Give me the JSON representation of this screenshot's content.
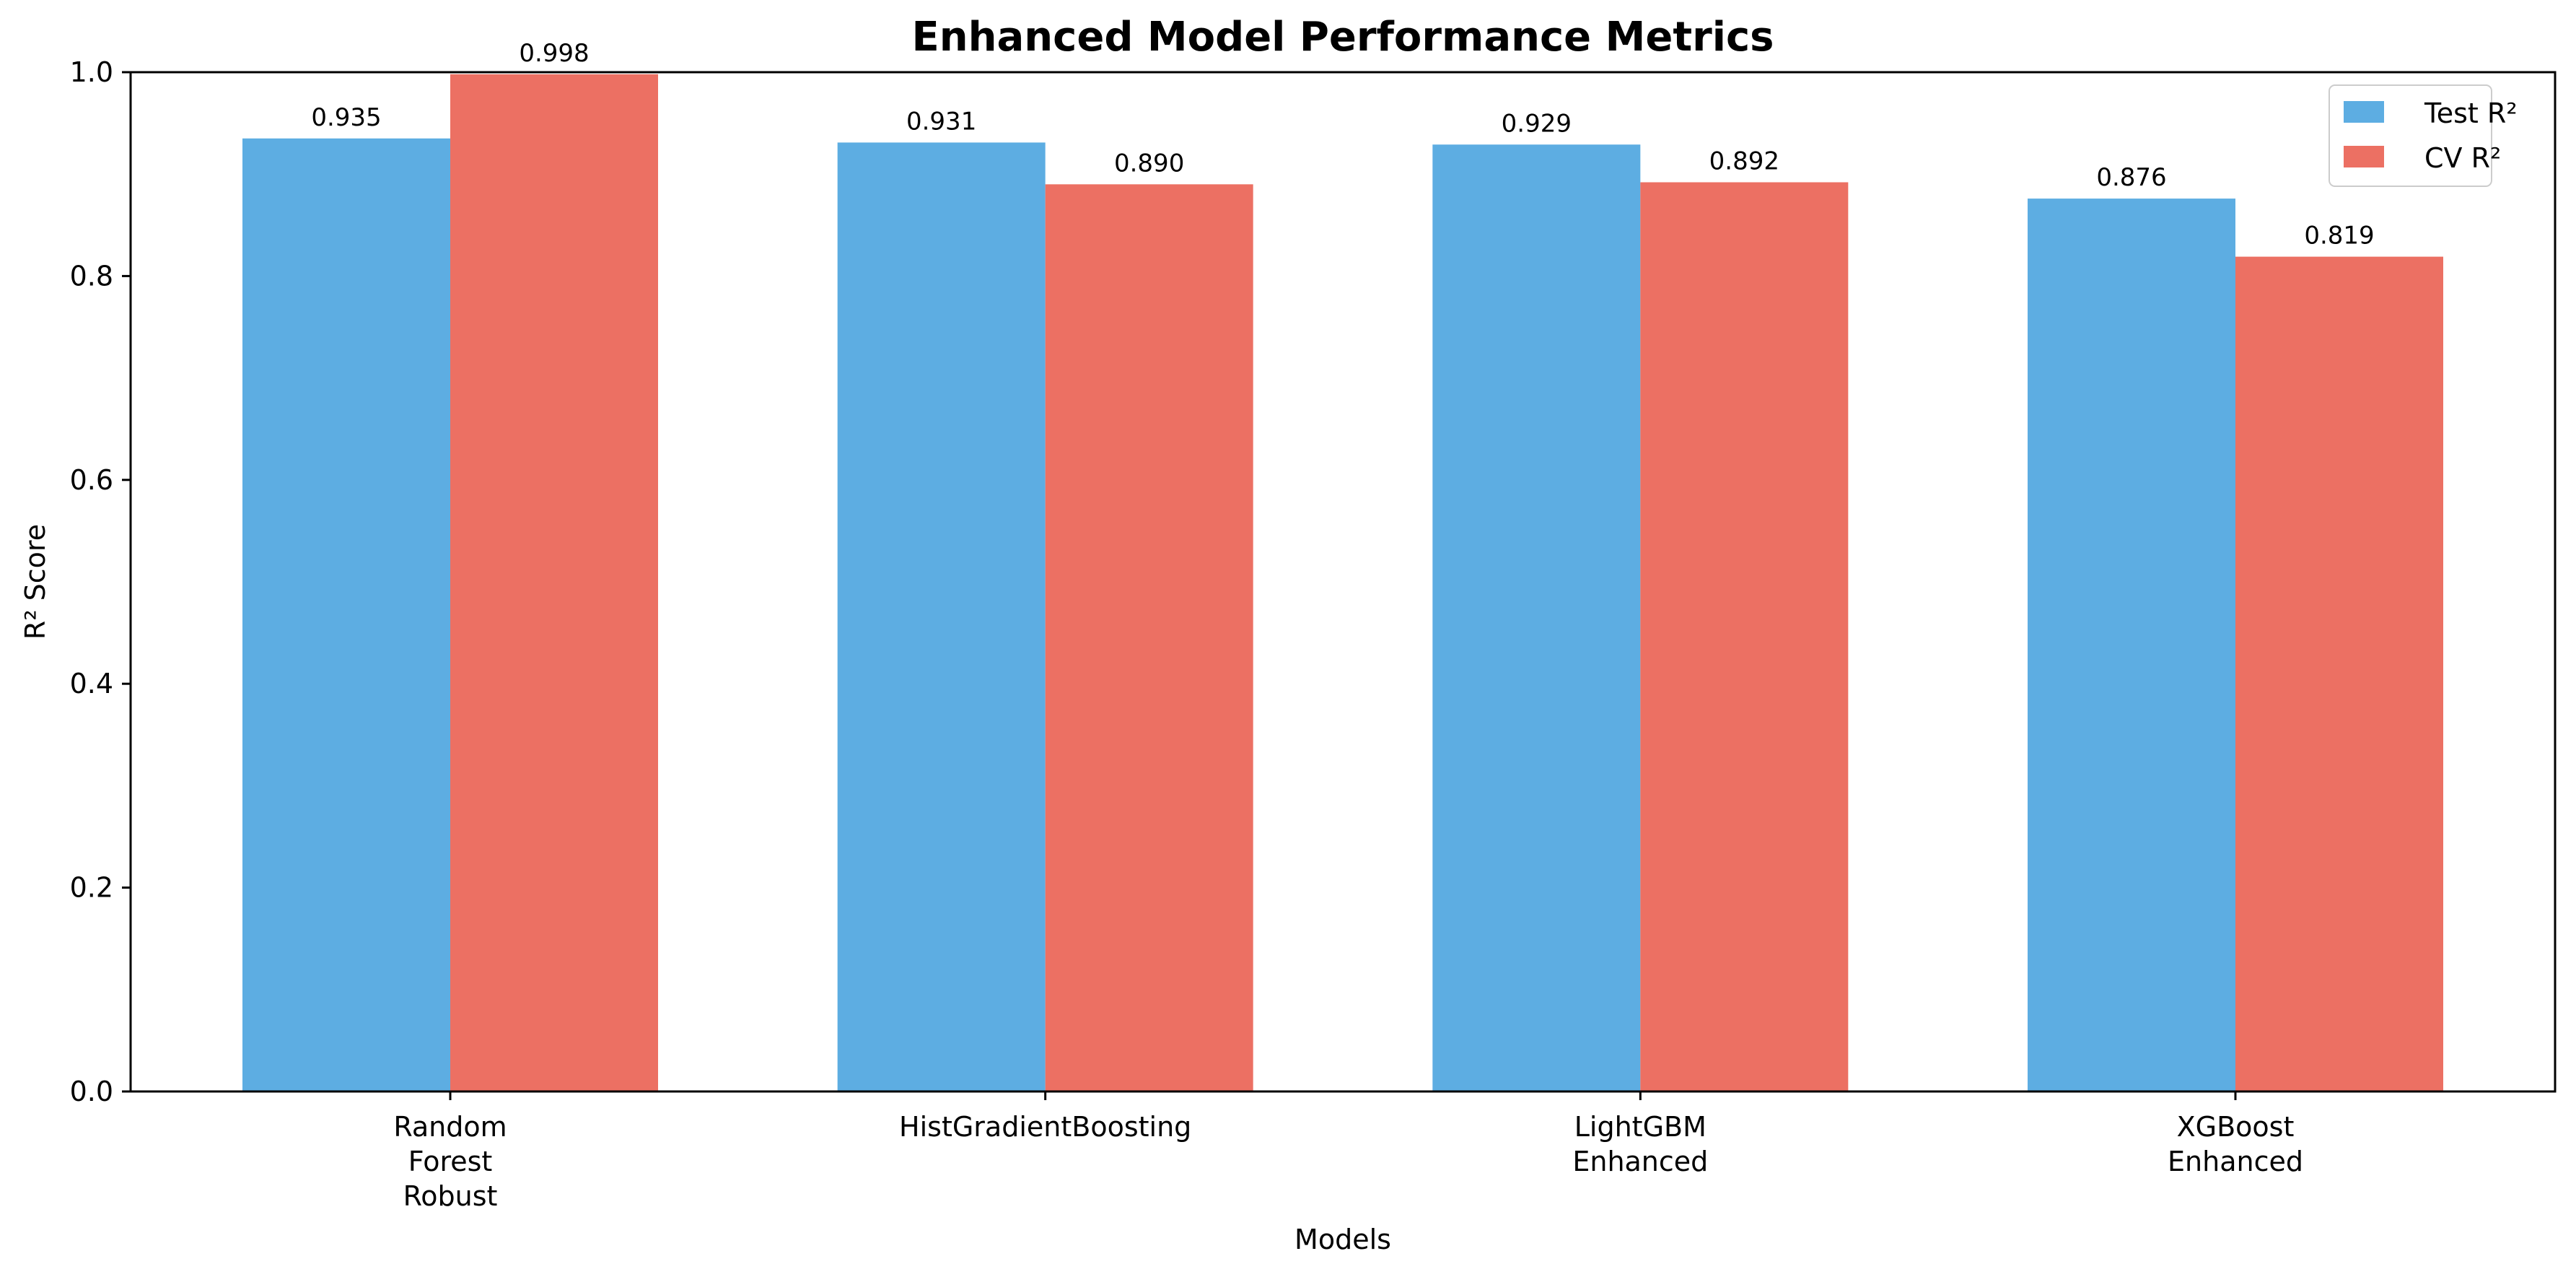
{
  "chart_data": {
    "type": "bar",
    "title": "Enhanced Model Performance Metrics",
    "xlabel": "Models",
    "ylabel": "R² Score",
    "ylim": [
      0,
      1.0
    ],
    "yticks": [
      "0.0",
      "0.2",
      "0.4",
      "0.6",
      "0.8",
      "1.0"
    ],
    "categories": [
      [
        "Random",
        "Forest",
        "Robust"
      ],
      [
        "HistGradientBoosting"
      ],
      [
        "LightGBM",
        "Enhanced"
      ],
      [
        "XGBoost",
        "Enhanced"
      ]
    ],
    "series": [
      {
        "name": "Test R²",
        "color": "#5DADE2",
        "values": [
          0.935,
          0.931,
          0.929,
          0.876
        ],
        "labels": [
          "0.935",
          "0.931",
          "0.929",
          "0.876"
        ]
      },
      {
        "name": "CV R²",
        "color": "#EC7063",
        "values": [
          0.998,
          0.89,
          0.892,
          0.819
        ],
        "labels": [
          "0.998",
          "0.890",
          "0.892",
          "0.819"
        ]
      }
    ],
    "legend_position": "top-right",
    "grid": false
  }
}
